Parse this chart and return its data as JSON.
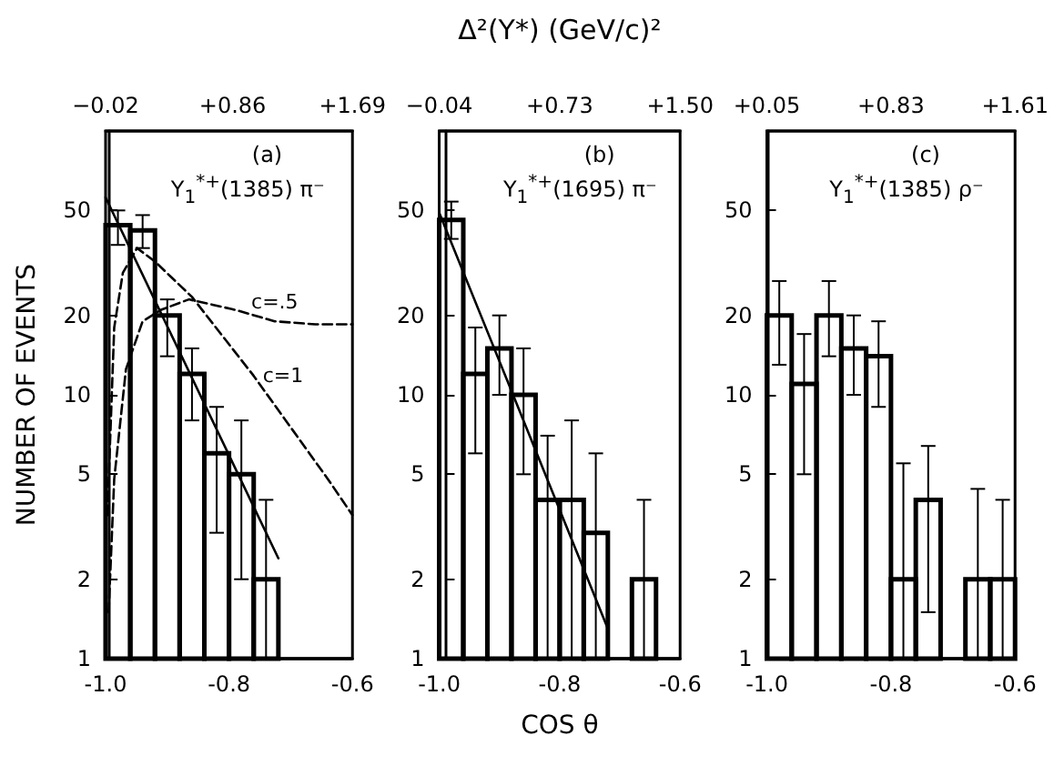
{
  "chart_data": [
    {
      "type": "histogram",
      "ylabel": "NUMBER OF EVENTS",
      "annotations": [
        "(a)",
        "Y$_{1}$$^{*+}$(1385) π⁻"
      ],
      "bins": [
        -1.0,
        -0.96,
        -0.92,
        -0.88,
        -0.84,
        -0.8,
        -0.76,
        -0.72,
        -0.68,
        -0.64,
        -0.6
      ],
      "log": "y",
      "xlim": [
        -1.0,
        -0.6
      ],
      "xticks": [
        {
          "value": -1.0,
          "label": "-1.0"
        },
        {
          "value": -0.8,
          "label": "-0.8"
        },
        {
          "value": -0.6,
          "label": "-0.6"
        }
      ],
      "ylim": [
        1,
        100
      ],
      "yticks": [
        1,
        2,
        5,
        10,
        20,
        50
      ],
      "x2lim": [
        -0.02,
        1.69
      ],
      "x2ticks": [
        {
          "value": -0.02,
          "label": "−0.02"
        },
        {
          "value": 0.86,
          "label": "+0.86"
        },
        {
          "value": 1.69,
          "label": "+1.69"
        }
      ],
      "series": [
        {
          "color": "#000000",
          "values": [
            44,
            42,
            20,
            12,
            6,
            5,
            2,
            null,
            null,
            null
          ],
          "errors": [
            [
              37,
              50
            ],
            [
              36,
              48
            ],
            [
              14,
              23
            ],
            [
              8,
              15
            ],
            [
              3,
              9
            ],
            [
              2,
              8
            ],
            [
              1,
              4
            ],
            null,
            null,
            null
          ]
        },
        {
          "type": "line",
          "color": "#000000",
          "line_style": "solid",
          "x": [
            -1.0,
            -0.72
          ],
          "values": [
            56,
            2.4
          ]
        },
        {
          "type": "line",
          "name": "c=.5",
          "color": "#000000",
          "line_style": "dashed",
          "x": [
            -0.995,
            -0.986,
            -0.967,
            -0.94,
            -0.91,
            -0.865,
            -0.79,
            -0.726,
            -0.66,
            -0.6
          ],
          "values": [
            1.5,
            4.8,
            12.5,
            19,
            21,
            23,
            21,
            19,
            18.5,
            18.5
          ]
        },
        {
          "type": "line",
          "name": "c=1",
          "color": "#000000",
          "line_style": "dashed",
          "x": [
            -0.997,
            -0.986,
            -0.972,
            -0.949,
            -0.92,
            -0.86,
            -0.76,
            -0.64,
            -0.6
          ],
          "values": [
            3.5,
            18,
            29,
            36,
            32,
            23.5,
            11.8,
            4.8,
            3.5
          ]
        }
      ]
    },
    {
      "type": "histogram",
      "xlabel": "COS θ",
      "x2label": "Δ²(Y*) (GeV/c)²",
      "annotations": [
        "(b)",
        "Y$_{1}$$^{*+}$(1695) π⁻"
      ],
      "bins": [
        -1.0,
        -0.96,
        -0.92,
        -0.88,
        -0.84,
        -0.8,
        -0.76,
        -0.72,
        -0.68,
        -0.64,
        -0.6
      ],
      "log": "y",
      "xlim": [
        -1.0,
        -0.6
      ],
      "xticks": [
        {
          "value": -1.0,
          "label": "-1.0"
        },
        {
          "value": -0.8,
          "label": "-0.8"
        },
        {
          "value": -0.6,
          "label": "-0.6"
        }
      ],
      "ylim": [
        1,
        100
      ],
      "yticks": [
        1,
        2,
        5,
        10,
        20,
        50
      ],
      "x2lim": [
        -0.04,
        1.5
      ],
      "x2ticks": [
        {
          "value": -0.04,
          "label": "−0.04"
        },
        {
          "value": 0.73,
          "label": "+0.73"
        },
        {
          "value": 1.5,
          "label": "+1.50"
        }
      ],
      "series": [
        {
          "color": "#000000",
          "values": [
            46,
            12,
            15,
            10,
            4,
            4,
            3,
            null,
            2,
            null
          ],
          "errors": [
            [
              39,
              54
            ],
            [
              6,
              18
            ],
            [
              10,
              20
            ],
            [
              5,
              15
            ],
            [
              1,
              7
            ],
            [
              1,
              8
            ],
            [
              1,
              6
            ],
            null,
            [
              1,
              4
            ],
            null
          ]
        },
        {
          "type": "line",
          "color": "#000000",
          "line_style": "solid",
          "x": [
            -1.0,
            -0.72
          ],
          "values": [
            49,
            1.3
          ]
        }
      ]
    },
    {
      "type": "histogram",
      "annotations": [
        "(c)",
        "Y$_{1}$$^{*+}$(1385) ρ⁻"
      ],
      "bins": [
        -1.0,
        -0.96,
        -0.92,
        -0.88,
        -0.84,
        -0.8,
        -0.76,
        -0.72,
        -0.68,
        -0.64,
        -0.6
      ],
      "log": "y",
      "xlim": [
        -1.0,
        -0.6
      ],
      "xticks": [
        {
          "value": -1.0,
          "label": "-1.0"
        },
        {
          "value": -0.8,
          "label": "-0.8"
        },
        {
          "value": -0.6,
          "label": "-0.6"
        }
      ],
      "ylim": [
        1,
        100
      ],
      "yticks": [
        1,
        2,
        5,
        10,
        20,
        50
      ],
      "x2lim": [
        0.05,
        1.61
      ],
      "x2ticks": [
        {
          "value": 0.05,
          "label": "+0.05"
        },
        {
          "value": 0.83,
          "label": "+0.83"
        },
        {
          "value": 1.61,
          "label": "+1.61"
        }
      ],
      "series": [
        {
          "color": "#000000",
          "values": [
            20,
            11,
            20,
            15,
            14,
            2,
            4,
            null,
            2,
            2
          ],
          "errors": [
            [
              13,
              27
            ],
            [
              5,
              17
            ],
            [
              14,
              27
            ],
            [
              10,
              20
            ],
            [
              9,
              19
            ],
            [
              1,
              5.5
            ],
            [
              1.5,
              6.4
            ],
            null,
            [
              1,
              4.4
            ],
            [
              1,
              4
            ]
          ]
        }
      ]
    }
  ]
}
